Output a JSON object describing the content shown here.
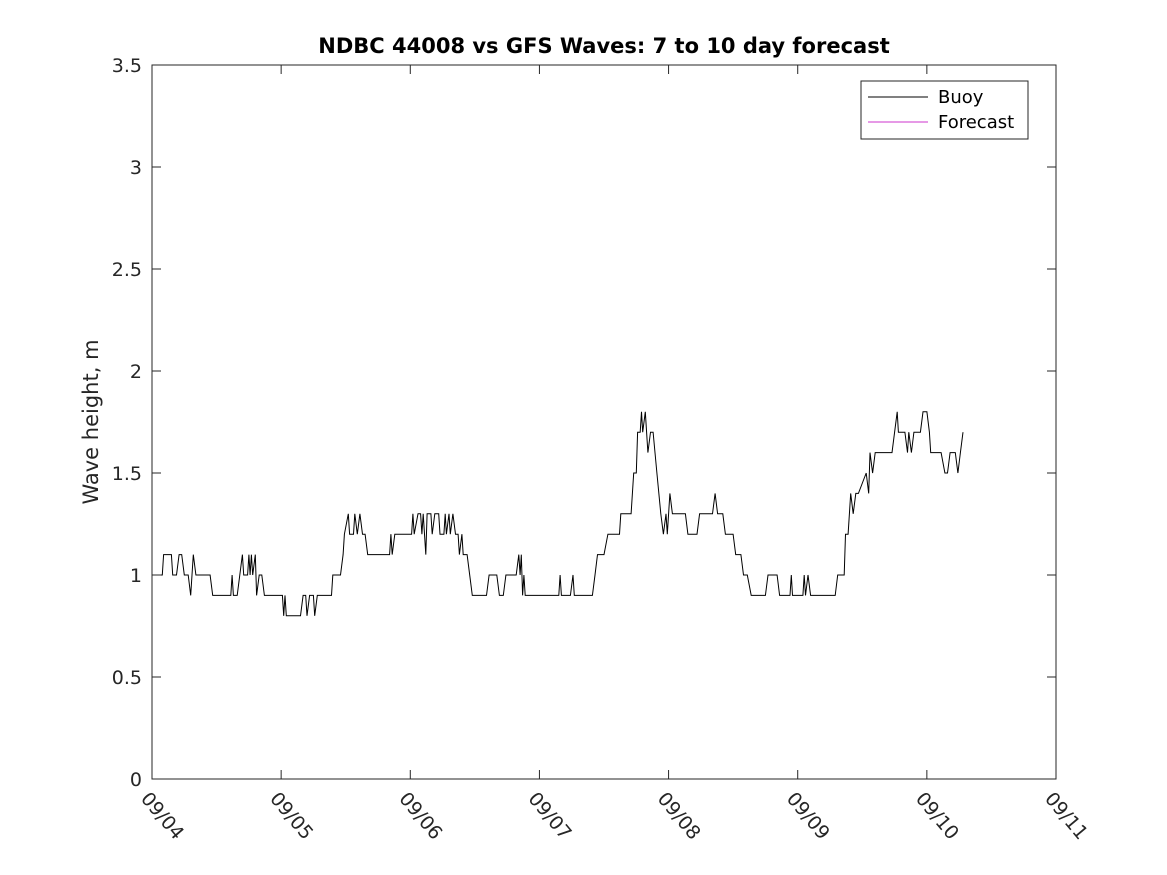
{
  "chart_data": {
    "type": "line",
    "title": "NDBC 44008 vs GFS Waves: 7 to 10 day forecast",
    "xlabel": "",
    "ylabel": "Wave height, m",
    "xlim": [
      0,
      7
    ],
    "ylim": [
      0,
      3.5
    ],
    "x_tick_values": [
      0,
      1,
      2,
      3,
      4,
      5,
      6,
      7
    ],
    "x_tick_labels": [
      "09/04",
      "09/05",
      "09/06",
      "09/07",
      "09/08",
      "09/09",
      "09/10",
      "09/11"
    ],
    "y_ticks": [
      0,
      0.5,
      1,
      1.5,
      2,
      2.5,
      3,
      3.5
    ],
    "y_tick_labels": [
      "0",
      "0.5",
      "1",
      "1.5",
      "2",
      "2.5",
      "3",
      "3.5"
    ],
    "legend_position": "top-right",
    "grid": false,
    "series": [
      {
        "name": "Buoy",
        "color": "#000000",
        "points": [
          [
            0.0,
            1.0
          ],
          [
            0.08,
            1.0
          ],
          [
            0.09,
            1.1
          ],
          [
            0.15,
            1.1
          ],
          [
            0.16,
            1.0
          ],
          [
            0.19,
            1.0
          ],
          [
            0.21,
            1.1
          ],
          [
            0.23,
            1.1
          ],
          [
            0.25,
            1.0
          ],
          [
            0.28,
            1.0
          ],
          [
            0.3,
            0.9
          ],
          [
            0.32,
            1.1
          ],
          [
            0.34,
            1.0
          ],
          [
            0.45,
            1.0
          ],
          [
            0.47,
            0.9
          ],
          [
            0.61,
            0.9
          ],
          [
            0.62,
            1.0
          ],
          [
            0.63,
            0.9
          ],
          [
            0.66,
            0.9
          ],
          [
            0.7,
            1.1
          ],
          [
            0.71,
            1.0
          ],
          [
            0.74,
            1.0
          ],
          [
            0.75,
            1.1
          ],
          [
            0.76,
            1.0
          ],
          [
            0.77,
            1.1
          ],
          [
            0.78,
            1.0
          ],
          [
            0.8,
            1.1
          ],
          [
            0.81,
            0.9
          ],
          [
            0.83,
            1.0
          ],
          [
            0.85,
            1.0
          ],
          [
            0.87,
            0.9
          ],
          [
            1.01,
            0.9
          ],
          [
            1.02,
            0.8
          ],
          [
            1.03,
            0.9
          ],
          [
            1.04,
            0.8
          ],
          [
            1.15,
            0.8
          ],
          [
            1.17,
            0.9
          ],
          [
            1.19,
            0.9
          ],
          [
            1.2,
            0.8
          ],
          [
            1.22,
            0.9
          ],
          [
            1.25,
            0.9
          ],
          [
            1.26,
            0.8
          ],
          [
            1.28,
            0.9
          ],
          [
            1.39,
            0.9
          ],
          [
            1.4,
            1.0
          ],
          [
            1.46,
            1.0
          ],
          [
            1.48,
            1.1
          ],
          [
            1.49,
            1.2
          ],
          [
            1.52,
            1.3
          ],
          [
            1.53,
            1.2
          ],
          [
            1.56,
            1.2
          ],
          [
            1.57,
            1.3
          ],
          [
            1.59,
            1.2
          ],
          [
            1.61,
            1.3
          ],
          [
            1.63,
            1.2
          ],
          [
            1.65,
            1.2
          ],
          [
            1.67,
            1.1
          ],
          [
            1.84,
            1.1
          ],
          [
            1.85,
            1.2
          ],
          [
            1.86,
            1.1
          ],
          [
            1.88,
            1.2
          ],
          [
            2.01,
            1.2
          ],
          [
            2.02,
            1.3
          ],
          [
            2.03,
            1.2
          ],
          [
            2.06,
            1.3
          ],
          [
            2.08,
            1.3
          ],
          [
            2.09,
            1.2
          ],
          [
            2.1,
            1.3
          ],
          [
            2.12,
            1.1
          ],
          [
            2.13,
            1.3
          ],
          [
            2.16,
            1.3
          ],
          [
            2.17,
            1.2
          ],
          [
            2.19,
            1.3
          ],
          [
            2.22,
            1.3
          ],
          [
            2.23,
            1.2
          ],
          [
            2.26,
            1.2
          ],
          [
            2.27,
            1.3
          ],
          [
            2.28,
            1.2
          ],
          [
            2.3,
            1.3
          ],
          [
            2.31,
            1.2
          ],
          [
            2.33,
            1.3
          ],
          [
            2.35,
            1.2
          ],
          [
            2.37,
            1.2
          ],
          [
            2.38,
            1.1
          ],
          [
            2.4,
            1.2
          ],
          [
            2.41,
            1.1
          ],
          [
            2.44,
            1.1
          ],
          [
            2.46,
            1.0
          ],
          [
            2.48,
            0.9
          ],
          [
            2.59,
            0.9
          ],
          [
            2.61,
            1.0
          ],
          [
            2.67,
            1.0
          ],
          [
            2.69,
            0.9
          ],
          [
            2.72,
            0.9
          ],
          [
            2.74,
            1.0
          ],
          [
            2.82,
            1.0
          ],
          [
            2.84,
            1.1
          ],
          [
            2.85,
            1.0
          ],
          [
            2.86,
            1.1
          ],
          [
            2.87,
            0.9
          ],
          [
            2.88,
            1.0
          ],
          [
            2.89,
            0.9
          ],
          [
            3.15,
            0.9
          ],
          [
            3.16,
            1.0
          ],
          [
            3.17,
            0.9
          ],
          [
            3.24,
            0.9
          ],
          [
            3.26,
            1.0
          ],
          [
            3.27,
            0.9
          ],
          [
            3.41,
            0.9
          ],
          [
            3.43,
            1.0
          ],
          [
            3.45,
            1.1
          ],
          [
            3.5,
            1.1
          ],
          [
            3.53,
            1.2
          ],
          [
            3.62,
            1.2
          ],
          [
            3.63,
            1.3
          ],
          [
            3.71,
            1.3
          ],
          [
            3.73,
            1.5
          ],
          [
            3.75,
            1.5
          ],
          [
            3.76,
            1.7
          ],
          [
            3.78,
            1.7
          ],
          [
            3.79,
            1.8
          ],
          [
            3.8,
            1.7
          ],
          [
            3.82,
            1.8
          ],
          [
            3.84,
            1.6
          ],
          [
            3.86,
            1.7
          ],
          [
            3.88,
            1.7
          ],
          [
            3.91,
            1.5
          ],
          [
            3.94,
            1.3
          ],
          [
            3.96,
            1.2
          ],
          [
            3.98,
            1.3
          ],
          [
            3.99,
            1.2
          ],
          [
            4.01,
            1.4
          ],
          [
            4.03,
            1.3
          ],
          [
            4.13,
            1.3
          ],
          [
            4.15,
            1.2
          ],
          [
            4.22,
            1.2
          ],
          [
            4.24,
            1.3
          ],
          [
            4.34,
            1.3
          ],
          [
            4.36,
            1.4
          ],
          [
            4.38,
            1.3
          ],
          [
            4.42,
            1.3
          ],
          [
            4.44,
            1.2
          ],
          [
            4.5,
            1.2
          ],
          [
            4.52,
            1.1
          ],
          [
            4.56,
            1.1
          ],
          [
            4.58,
            1.0
          ],
          [
            4.61,
            1.0
          ],
          [
            4.64,
            0.9
          ],
          [
            4.75,
            0.9
          ],
          [
            4.77,
            1.0
          ],
          [
            4.84,
            1.0
          ],
          [
            4.86,
            0.9
          ],
          [
            4.94,
            0.9
          ],
          [
            4.95,
            1.0
          ],
          [
            4.96,
            0.9
          ],
          [
            5.04,
            0.9
          ],
          [
            5.05,
            1.0
          ],
          [
            5.06,
            0.9
          ],
          [
            5.08,
            1.0
          ],
          [
            5.1,
            0.9
          ],
          [
            5.29,
            0.9
          ],
          [
            5.31,
            1.0
          ],
          [
            5.36,
            1.0
          ],
          [
            5.37,
            1.2
          ],
          [
            5.39,
            1.2
          ],
          [
            5.4,
            1.3
          ],
          [
            5.41,
            1.4
          ],
          [
            5.43,
            1.3
          ],
          [
            5.45,
            1.4
          ],
          [
            5.47,
            1.4
          ],
          [
            5.53,
            1.5
          ],
          [
            5.55,
            1.4
          ],
          [
            5.56,
            1.6
          ],
          [
            5.58,
            1.5
          ],
          [
            5.6,
            1.6
          ],
          [
            5.73,
            1.6
          ],
          [
            5.75,
            1.7
          ],
          [
            5.77,
            1.8
          ],
          [
            5.78,
            1.7
          ],
          [
            5.83,
            1.7
          ],
          [
            5.85,
            1.6
          ],
          [
            5.86,
            1.7
          ],
          [
            5.88,
            1.6
          ],
          [
            5.9,
            1.7
          ],
          [
            5.95,
            1.7
          ],
          [
            5.97,
            1.8
          ],
          [
            6.0,
            1.8
          ],
          [
            6.02,
            1.7
          ],
          [
            6.03,
            1.6
          ],
          [
            6.11,
            1.6
          ],
          [
            6.14,
            1.5
          ],
          [
            6.16,
            1.5
          ],
          [
            6.18,
            1.6
          ],
          [
            6.22,
            1.6
          ],
          [
            6.24,
            1.5
          ],
          [
            6.26,
            1.6
          ],
          [
            6.28,
            1.7
          ]
        ]
      },
      {
        "name": "Forecast",
        "color": "#cc33cc",
        "points": []
      }
    ]
  }
}
